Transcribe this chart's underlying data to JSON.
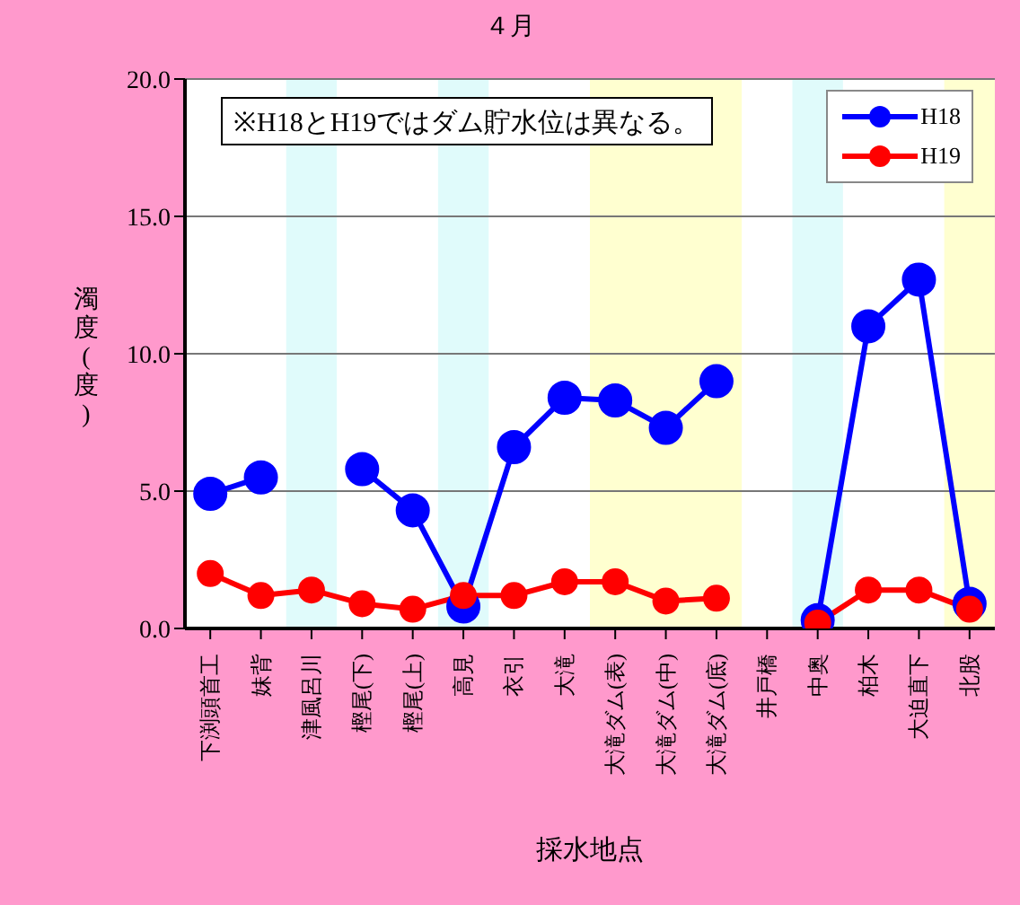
{
  "chart_data": {
    "type": "line",
    "title": "４月",
    "xlabel": "採水地点",
    "ylabel": "濁度(度)",
    "categories": [
      "下渕頭首工",
      "妹背",
      "津風呂川",
      "樫尾(下)",
      "樫尾(上)",
      "高見",
      "衣引",
      "大滝",
      "大滝ダム(表)",
      "大滝ダム(中)",
      "大滝ダム(底)",
      "井戸橋",
      "中奥",
      "柏木",
      "大迫直下",
      "北股"
    ],
    "series": [
      {
        "name": "H18",
        "color": "#0000ff",
        "values": [
          4.9,
          5.5,
          null,
          5.8,
          4.3,
          0.8,
          6.6,
          8.4,
          8.3,
          7.3,
          9.0,
          null,
          0.3,
          11.0,
          12.7,
          0.9
        ]
      },
      {
        "name": "H19",
        "color": "#ff0000",
        "values": [
          2.0,
          1.2,
          1.4,
          0.9,
          0.7,
          1.2,
          1.2,
          1.7,
          1.7,
          1.0,
          1.1,
          null,
          0.2,
          1.4,
          1.4,
          0.7
        ]
      }
    ],
    "ylim": [
      0,
      20
    ],
    "yticks": [
      {
        "value": 0,
        "label": "0.0"
      },
      {
        "value": 5,
        "label": "5.0"
      },
      {
        "value": 10,
        "label": "10.0"
      },
      {
        "value": 15,
        "label": "15.0"
      },
      {
        "value": 20,
        "label": "20.0"
      }
    ],
    "grid": "y",
    "legend": "top right",
    "marker": "circle",
    "line_style": "solid",
    "bands": [
      {
        "axis": "x",
        "from": "津風呂川",
        "to": "津風呂川",
        "color": "#e0fbfb"
      },
      {
        "axis": "x",
        "from": "高見",
        "to": "高見",
        "color": "#e0fbfb"
      },
      {
        "axis": "x",
        "from": "大滝ダム(表)",
        "to": "大滝ダム(底)",
        "color": "#ffffd0"
      },
      {
        "axis": "x",
        "from": "中奥",
        "to": "中奥",
        "color": "#e0fbfb"
      },
      {
        "axis": "x",
        "from": "北股",
        "to": "北股",
        "color": "#ffffd0"
      }
    ],
    "annotations": [
      "※H18とH19ではダム貯水位は異なる。"
    ]
  }
}
